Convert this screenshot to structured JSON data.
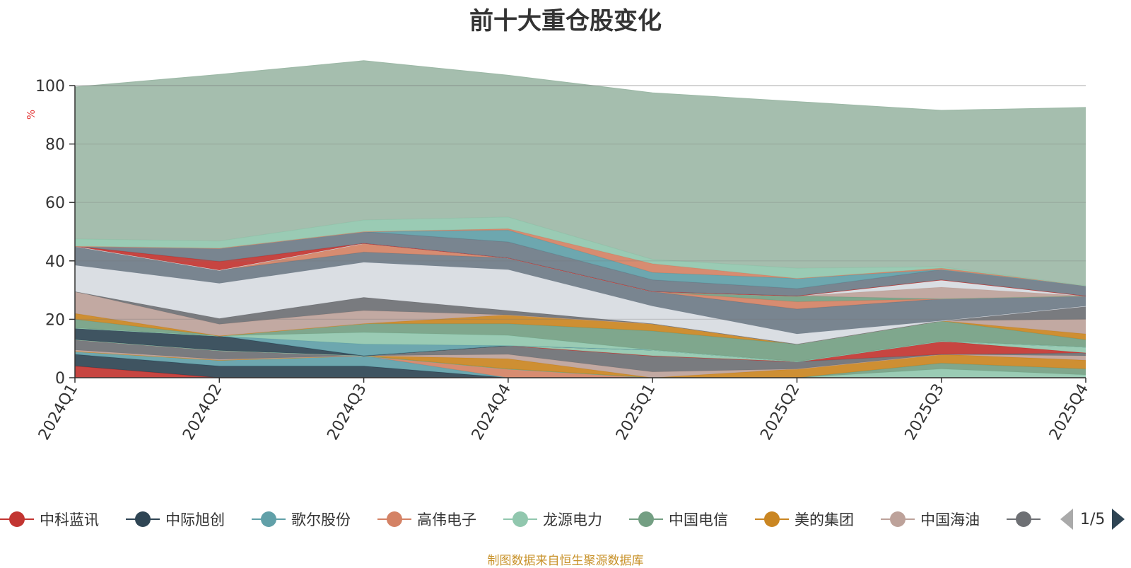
{
  "chart_data": {
    "type": "area",
    "stacked": true,
    "title": "前十大重仓股变化",
    "ylabel": "%",
    "ylim": [
      0,
      100
    ],
    "yticks": [
      "0",
      "20",
      "40",
      "60",
      "80",
      "100"
    ],
    "categories": [
      "2024Q1",
      "2024Q2",
      "2024Q3",
      "2024Q4",
      "2025Q1",
      "2025Q2",
      "2025Q3",
      "2025Q4"
    ],
    "grid": true,
    "legend_position": "bottom",
    "series": [
      {
        "name": "中科蓝讯",
        "color": "#c23531",
        "values": [
          4,
          0,
          0,
          0,
          0,
          0,
          0,
          0
        ]
      },
      {
        "name": "中际旭创",
        "color": "#2f4554",
        "values": [
          4,
          4,
          4,
          0,
          0,
          0,
          0,
          0
        ]
      },
      {
        "name": "歌尔股份",
        "color": "#61a0a8",
        "values": [
          1,
          2,
          3.5,
          0,
          0,
          0,
          0,
          0
        ]
      },
      {
        "name": "高伟电子",
        "color": "#d48265",
        "values": [
          0,
          0,
          0,
          3,
          0,
          0,
          0,
          0
        ]
      },
      {
        "name": "龙源电力",
        "color": "#91c7ae",
        "values": [
          0,
          0,
          0,
          0,
          0,
          0,
          3,
          1
        ]
      },
      {
        "name": "中国电信",
        "color": "#749f83",
        "values": [
          0,
          0,
          0,
          0,
          0,
          0,
          2,
          2
        ]
      },
      {
        "name": "美的集团",
        "color": "#ca8622",
        "values": [
          0,
          0,
          0,
          3.5,
          0,
          3,
          3,
          3
        ]
      },
      {
        "name": "中国海油",
        "color": "#bda29a",
        "values": [
          0.5,
          0.3,
          0,
          1.5,
          2,
          0,
          0,
          1.5
        ]
      },
      {
        "name": "",
        "color": "#6e7074",
        "values": [
          3.5,
          3,
          0,
          3,
          5.5,
          2.5,
          0,
          1
        ]
      },
      {
        "name": "",
        "color": "#c23531",
        "values": [
          0,
          0,
          0,
          0,
          0,
          0,
          4.5,
          0
        ]
      },
      {
        "name": "",
        "color": "#91c7ae",
        "values": [
          0,
          0,
          0,
          0,
          2,
          0,
          0,
          2
        ]
      },
      {
        "name": "",
        "color": "#2f4554",
        "values": [
          4,
          5,
          0,
          0,
          0,
          0,
          0,
          0
        ]
      },
      {
        "name": "",
        "color": "#61a0a8",
        "values": [
          0,
          0,
          4,
          0,
          0,
          0,
          0,
          0
        ]
      },
      {
        "name": "",
        "color": "#91c7ae",
        "values": [
          0,
          0,
          4,
          3.5,
          0,
          0,
          0,
          0
        ]
      },
      {
        "name": "",
        "color": "#749f83",
        "values": [
          3,
          0,
          3,
          4,
          6.5,
          6,
          7,
          2.5
        ]
      },
      {
        "name": "",
        "color": "#ca8622",
        "values": [
          2,
          0,
          0,
          3,
          2.5,
          0,
          0,
          2
        ]
      },
      {
        "name": "",
        "color": "#bda29a",
        "values": [
          7.5,
          4,
          4.5,
          0,
          0,
          0,
          0,
          5
        ]
      },
      {
        "name": "",
        "color": "#6e7074",
        "values": [
          0,
          2,
          4.5,
          1.5,
          0,
          0,
          0,
          4.5
        ]
      },
      {
        "name": "",
        "color": "#d7dbe1",
        "values": [
          9,
          12,
          12,
          14,
          6,
          3.5,
          0,
          0
        ]
      },
      {
        "name": "",
        "color": "#6e7b87",
        "values": [
          6.5,
          4.5,
          3.5,
          4,
          5,
          8.5,
          7.5,
          3.5
        ]
      },
      {
        "name": "",
        "color": "#d48265",
        "values": [
          0,
          0,
          3,
          0,
          0,
          2.5,
          0,
          0
        ]
      },
      {
        "name": "",
        "color": "#749f83",
        "values": [
          0,
          0,
          0,
          0,
          0,
          2,
          0,
          0
        ]
      },
      {
        "name": "",
        "color": "#bda29a",
        "values": [
          0,
          0,
          0,
          0,
          0,
          0,
          4,
          0
        ]
      },
      {
        "name": "",
        "color": "#d7dbe1",
        "values": [
          0,
          0,
          0,
          0,
          0,
          0,
          2.5,
          0
        ]
      },
      {
        "name": "",
        "color": "#c23531",
        "values": [
          0,
          3,
          0,
          0,
          0,
          0,
          0,
          0
        ]
      },
      {
        "name": "",
        "color": "#6e7b87",
        "values": [
          0,
          4.5,
          4,
          5.5,
          4,
          2.5,
          3.5,
          3.5
        ]
      },
      {
        "name": "",
        "color": "#61a0a8",
        "values": [
          0,
          0,
          0,
          4,
          2.5,
          3.5,
          0,
          0
        ]
      },
      {
        "name": "",
        "color": "#d48265",
        "values": [
          0,
          0,
          0,
          0.5,
          3,
          0,
          0.5,
          0
        ]
      },
      {
        "name": "",
        "color": "#91c7ae",
        "values": [
          2.5,
          2.5,
          4,
          4,
          1.5,
          3.5,
          0.5,
          0
        ]
      },
      {
        "name": "",
        "color": "#9db9a7",
        "values": [
          52,
          57,
          54.5,
          48.5,
          57,
          57,
          53.5,
          61
        ]
      }
    ]
  },
  "legend": {
    "items": [
      {
        "label": "中科蓝讯",
        "color": "#c23531"
      },
      {
        "label": "中际旭创",
        "color": "#2f4554"
      },
      {
        "label": "歌尔股份",
        "color": "#61a0a8"
      },
      {
        "label": "高伟电子",
        "color": "#d48265"
      },
      {
        "label": "龙源电力",
        "color": "#91c7ae"
      },
      {
        "label": "中国电信",
        "color": "#749f83"
      },
      {
        "label": "美的集团",
        "color": "#ca8622"
      },
      {
        "label": "中国海油",
        "color": "#bda29a"
      },
      {
        "label": "",
        "color": "#6e7074"
      }
    ],
    "page": "1/5"
  },
  "source_note": "制图数据来自恒生聚源数据库"
}
